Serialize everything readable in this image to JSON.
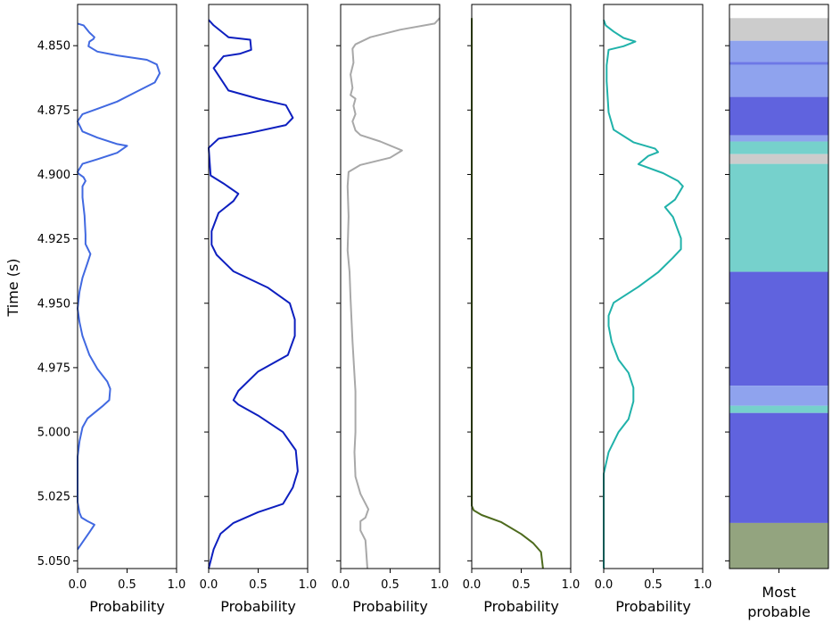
{
  "chart_data": {
    "type": "line",
    "ylabel": "Time (s)",
    "ylim": [
      4.834,
      5.053
    ],
    "y_inverted": true,
    "yticks": [
      "4.850",
      "4.875",
      "4.900",
      "4.925",
      "4.950",
      "4.975",
      "5.000",
      "5.025",
      "5.050"
    ],
    "xlim": [
      0,
      1
    ],
    "xticks": [
      "0.0",
      "0.5",
      "1.0"
    ],
    "xlabel": "Probability",
    "panels": [
      {
        "color": "#4169e1",
        "points": [
          [
            0.0,
            4.8414
          ],
          [
            0.06,
            4.8421
          ],
          [
            0.12,
            4.8449
          ],
          [
            0.17,
            4.8467
          ],
          [
            0.16,
            4.8474
          ],
          [
            0.12,
            4.8484
          ],
          [
            0.11,
            4.8502
          ],
          [
            0.2,
            4.8523
          ],
          [
            0.4,
            4.8538
          ],
          [
            0.7,
            4.8555
          ],
          [
            0.8,
            4.8573
          ],
          [
            0.83,
            4.8607
          ],
          [
            0.78,
            4.8643
          ],
          [
            0.6,
            4.8678
          ],
          [
            0.4,
            4.8717
          ],
          [
            0.2,
            4.8745
          ],
          [
            0.05,
            4.8766
          ],
          [
            0.0,
            4.8794
          ],
          [
            0.05,
            4.8833
          ],
          [
            0.2,
            4.8857
          ],
          [
            0.4,
            4.8882
          ],
          [
            0.5,
            4.8889
          ],
          [
            0.4,
            4.8916
          ],
          [
            0.2,
            4.8941
          ],
          [
            0.05,
            4.8959
          ],
          [
            0.0,
            4.899
          ],
          [
            0.01,
            4.8997
          ],
          [
            0.06,
            4.9011
          ],
          [
            0.08,
            4.9025
          ],
          [
            0.05,
            4.9046
          ],
          [
            0.05,
            4.9089
          ],
          [
            0.07,
            4.916
          ],
          [
            0.08,
            4.9234
          ],
          [
            0.08,
            4.927
          ],
          [
            0.13,
            4.9309
          ],
          [
            0.1,
            4.9344
          ],
          [
            0.05,
            4.9401
          ],
          [
            0.02,
            4.9454
          ],
          [
            0.0,
            4.9521
          ],
          [
            0.02,
            4.9574
          ],
          [
            0.05,
            4.9627
          ],
          [
            0.12,
            4.9701
          ],
          [
            0.2,
            4.9755
          ],
          [
            0.3,
            4.9804
          ],
          [
            0.33,
            4.9832
          ],
          [
            0.32,
            4.9876
          ],
          [
            0.25,
            4.99
          ],
          [
            0.1,
            4.9947
          ],
          [
            0.05,
            4.9982
          ],
          [
            0.02,
            5.0035
          ],
          [
            0.0,
            5.0095
          ],
          [
            0.0,
            5.0145
          ],
          [
            0.0,
            5.0272
          ],
          [
            0.02,
            5.0314
          ],
          [
            0.04,
            5.0332
          ],
          [
            0.1,
            5.0346
          ],
          [
            0.17,
            5.036
          ],
          [
            0.12,
            5.0389
          ],
          [
            0.05,
            5.0428
          ],
          [
            0.0,
            5.0456
          ]
        ]
      },
      {
        "color": "#0d1fbf",
        "points": [
          [
            0.0,
            4.84
          ],
          [
            0.05,
            4.8421
          ],
          [
            0.2,
            4.8467
          ],
          [
            0.42,
            4.8477
          ],
          [
            0.43,
            4.8516
          ],
          [
            0.32,
            4.8531
          ],
          [
            0.15,
            4.8541
          ],
          [
            0.05,
            4.8587
          ],
          [
            0.2,
            4.8674
          ],
          [
            0.5,
            4.8706
          ],
          [
            0.78,
            4.8731
          ],
          [
            0.85,
            4.878
          ],
          [
            0.78,
            4.8808
          ],
          [
            0.4,
            4.884
          ],
          [
            0.1,
            4.8861
          ],
          [
            0.0,
            4.8897
          ],
          [
            0.02,
            4.9004
          ],
          [
            0.15,
            4.9035
          ],
          [
            0.3,
            4.9075
          ],
          [
            0.25,
            4.9103
          ],
          [
            0.1,
            4.9149
          ],
          [
            0.03,
            4.922
          ],
          [
            0.03,
            4.9273
          ],
          [
            0.08,
            4.9312
          ],
          [
            0.25,
            4.9376
          ],
          [
            0.6,
            4.944
          ],
          [
            0.82,
            4.95
          ],
          [
            0.87,
            4.9563
          ],
          [
            0.87,
            4.9627
          ],
          [
            0.8,
            4.9701
          ],
          [
            0.5,
            4.9765
          ],
          [
            0.3,
            4.984
          ],
          [
            0.25,
            4.9876
          ],
          [
            0.3,
            4.9893
          ],
          [
            0.5,
            4.9936
          ],
          [
            0.75,
            5.0
          ],
          [
            0.88,
            5.0071
          ],
          [
            0.9,
            5.0152
          ],
          [
            0.85,
            5.0215
          ],
          [
            0.75,
            5.0279
          ],
          [
            0.5,
            5.0311
          ],
          [
            0.25,
            5.0353
          ],
          [
            0.12,
            5.0395
          ],
          [
            0.05,
            5.0455
          ],
          [
            0.0,
            5.053
          ]
        ]
      },
      {
        "color": "#a8a8a8",
        "points": [
          [
            1.0,
            4.8393
          ],
          [
            0.95,
            4.8414
          ],
          [
            0.6,
            4.8438
          ],
          [
            0.3,
            4.8467
          ],
          [
            0.15,
            4.8495
          ],
          [
            0.12,
            4.8512
          ],
          [
            0.13,
            4.8566
          ],
          [
            0.1,
            4.8612
          ],
          [
            0.12,
            4.8664
          ],
          [
            0.1,
            4.8692
          ],
          [
            0.15,
            4.8706
          ],
          [
            0.13,
            4.8734
          ],
          [
            0.15,
            4.8766
          ],
          [
            0.12,
            4.8794
          ],
          [
            0.15,
            4.8829
          ],
          [
            0.2,
            4.8847
          ],
          [
            0.4,
            4.8872
          ],
          [
            0.62,
            4.8907
          ],
          [
            0.5,
            4.8935
          ],
          [
            0.2,
            4.8963
          ],
          [
            0.08,
            4.899
          ],
          [
            0.07,
            4.9046
          ],
          [
            0.08,
            4.9163
          ],
          [
            0.07,
            4.9295
          ],
          [
            0.09,
            4.9379
          ],
          [
            0.1,
            4.9482
          ],
          [
            0.12,
            4.9648
          ],
          [
            0.15,
            4.9842
          ],
          [
            0.15,
            5.0
          ],
          [
            0.14,
            5.0078
          ],
          [
            0.15,
            5.0173
          ],
          [
            0.2,
            5.024
          ],
          [
            0.28,
            5.03
          ],
          [
            0.25,
            5.0332
          ],
          [
            0.2,
            5.0346
          ],
          [
            0.2,
            5.0382
          ],
          [
            0.25,
            5.042
          ],
          [
            0.27,
            5.053
          ]
        ]
      },
      {
        "color": "#4d6a1d",
        "points": [
          [
            0.0,
            4.8393
          ],
          [
            0.0,
            5.0286
          ],
          [
            0.02,
            5.0304
          ],
          [
            0.1,
            5.0322
          ],
          [
            0.3,
            5.035
          ],
          [
            0.5,
            5.0396
          ],
          [
            0.62,
            5.0431
          ],
          [
            0.7,
            5.0466
          ],
          [
            0.72,
            5.053
          ]
        ]
      },
      {
        "color": "#20b2aa",
        "points": [
          [
            0.0,
            4.84
          ],
          [
            0.02,
            4.8421
          ],
          [
            0.1,
            4.8445
          ],
          [
            0.2,
            4.847
          ],
          [
            0.32,
            4.8484
          ],
          [
            0.2,
            4.8502
          ],
          [
            0.05,
            4.8516
          ],
          [
            0.03,
            4.8576
          ],
          [
            0.03,
            4.8638
          ],
          [
            0.05,
            4.8759
          ],
          [
            0.1,
            4.8826
          ],
          [
            0.3,
            4.8875
          ],
          [
            0.52,
            4.89
          ],
          [
            0.55,
            4.8913
          ],
          [
            0.45,
            4.8928
          ],
          [
            0.35,
            4.896
          ],
          [
            0.6,
            4.8995
          ],
          [
            0.75,
            4.9025
          ],
          [
            0.8,
            4.9046
          ],
          [
            0.72,
            4.9098
          ],
          [
            0.62,
            4.9127
          ],
          [
            0.7,
            4.9165
          ],
          [
            0.78,
            4.9248
          ],
          [
            0.78,
            4.929
          ],
          [
            0.7,
            4.9323
          ],
          [
            0.55,
            4.938
          ],
          [
            0.35,
            4.9436
          ],
          [
            0.1,
            4.9498
          ],
          [
            0.05,
            4.9548
          ],
          [
            0.05,
            4.9588
          ],
          [
            0.08,
            4.965
          ],
          [
            0.15,
            4.9719
          ],
          [
            0.25,
            4.977
          ],
          [
            0.3,
            4.9828
          ],
          [
            0.3,
            4.9881
          ],
          [
            0.25,
            4.995
          ],
          [
            0.15,
            5.0
          ],
          [
            0.05,
            5.0078
          ],
          [
            0.0,
            5.0162
          ],
          [
            0.0,
            5.053
          ]
        ]
      }
    ],
    "most_probable": {
      "label": "Most\nprobable",
      "segments": [
        {
          "color": "#cccccc",
          "from": 4.8393,
          "to": 4.8481
        },
        {
          "color": "#8fa3ee",
          "from": 4.8481,
          "to": 4.8563
        },
        {
          "color": "#6d78e6",
          "from": 4.8563,
          "to": 4.8574
        },
        {
          "color": "#8fa3ee",
          "from": 4.8574,
          "to": 4.8699
        },
        {
          "color": "#6063de",
          "from": 4.8699,
          "to": 4.8848
        },
        {
          "color": "#8fa3ee",
          "from": 4.8848,
          "to": 4.8872
        },
        {
          "color": "#76d1cc",
          "from": 4.8872,
          "to": 4.8921
        },
        {
          "color": "#cccccc",
          "from": 4.8921,
          "to": 4.8959
        },
        {
          "color": "#76d1cc",
          "from": 4.8959,
          "to": 4.9378
        },
        {
          "color": "#6063de",
          "from": 4.9378,
          "to": 4.982
        },
        {
          "color": "#8fa3ee",
          "from": 4.982,
          "to": 4.9898
        },
        {
          "color": "#76d1cc",
          "from": 4.9898,
          "to": 4.9926
        },
        {
          "color": "#6063de",
          "from": 4.9926,
          "to": 5.0353
        },
        {
          "color": "#93a47f",
          "from": 5.0353,
          "to": 5.053
        }
      ]
    }
  }
}
